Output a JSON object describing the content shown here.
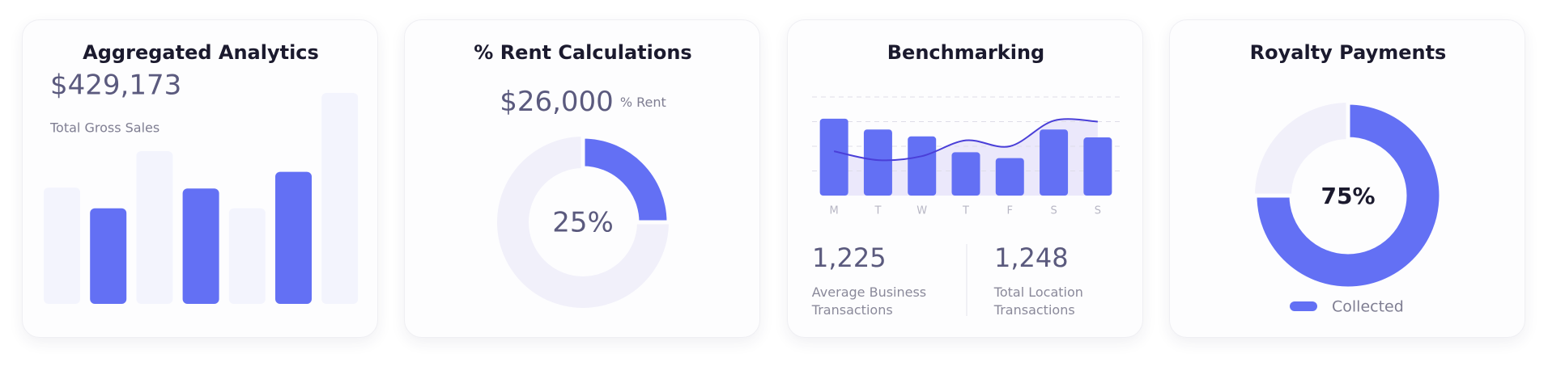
{
  "chart_data": [
    {
      "type": "bar",
      "title": "Aggregated Analytics",
      "headline": "$429,173",
      "headline_label": "Total Gross Sales",
      "values": [
        118,
        97,
        155,
        117,
        97,
        134,
        214
      ],
      "colors": [
        "#f3f4fd",
        "#6370f4",
        "#f3f4fd",
        "#6370f4",
        "#f3f4fd",
        "#6370f4",
        "#f3f4fd"
      ]
    },
    {
      "type": "donut",
      "title": "% Rent Calculations",
      "headline": "$26,000",
      "headline_unit": "% Rent",
      "values": [
        25
      ],
      "value_labels": [
        "25%"
      ],
      "color": "#6370f4",
      "track_color": "#f1f0fa"
    },
    {
      "type": "combo",
      "title": "Benchmarking",
      "categories": [
        "M",
        "T",
        "W",
        "T",
        "F",
        "S",
        "S"
      ],
      "series": [
        {
          "type": "bar",
          "color": "#6370f4",
          "values": [
            78,
            67,
            60,
            44,
            38,
            67,
            59
          ]
        },
        {
          "type": "line",
          "color": "#4a3fd8",
          "values": [
            45,
            36,
            40,
            56,
            50,
            76,
            75
          ]
        }
      ],
      "area_color": "#ebe8fb",
      "ylim": [
        0,
        100
      ],
      "yticks": [
        25,
        50,
        75,
        100
      ],
      "grid": true,
      "stats": [
        {
          "value": "1,225",
          "label": "Average Business Transactions"
        },
        {
          "value": "1,248",
          "label": "Total Location Transactions"
        }
      ]
    },
    {
      "type": "donut",
      "title": "Royalty Payments",
      "series": [
        {
          "name": "Collected",
          "color": "#6370f4",
          "values": [
            75
          ],
          "value_labels": [
            "75%"
          ]
        }
      ],
      "track_color": "#f1f0fa",
      "legend": "bottom"
    }
  ]
}
